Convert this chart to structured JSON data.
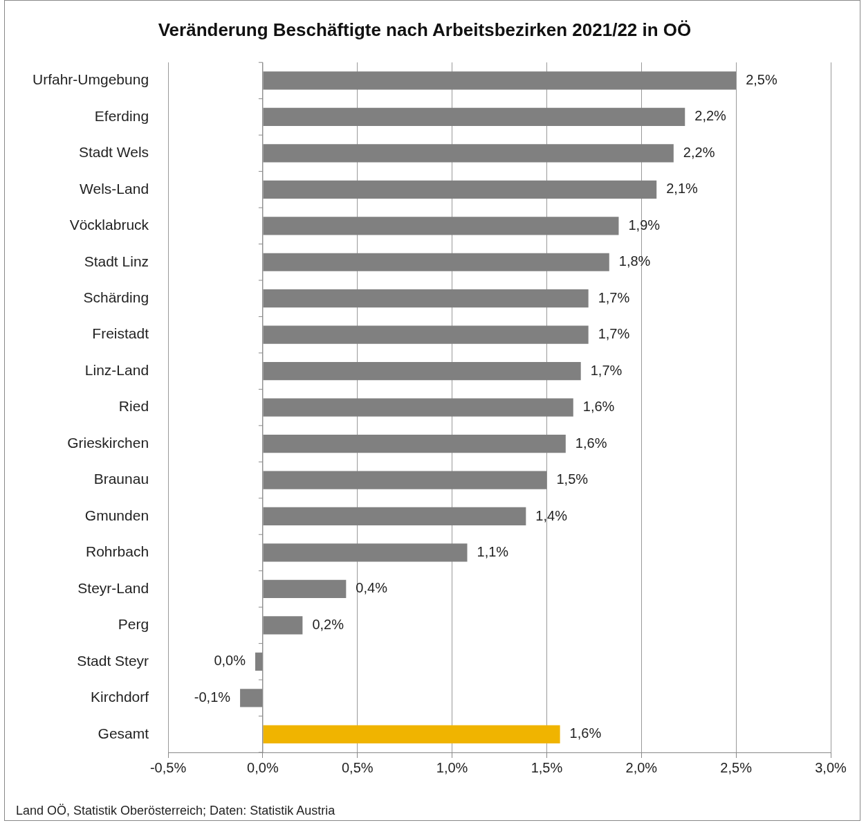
{
  "chart_data": {
    "type": "bar",
    "orientation": "horizontal",
    "title": "Veränderung Beschäftigte nach Arbeitsbezirken 2021/22 in OÖ",
    "categories": [
      "Urfahr-Umgebung",
      "Eferding",
      "Stadt Wels",
      "Wels-Land",
      "Vöcklabruck",
      "Stadt Linz",
      "Schärding",
      "Freistadt",
      "Linz-Land",
      "Ried",
      "Grieskirchen",
      "Braunau",
      "Gmunden",
      "Rohrbach",
      "Steyr-Land",
      "Perg",
      "Stadt Steyr",
      "Kirchdorf",
      "Gesamt"
    ],
    "values": [
      2.5,
      2.23,
      2.17,
      2.08,
      1.88,
      1.83,
      1.72,
      1.72,
      1.68,
      1.64,
      1.6,
      1.5,
      1.39,
      1.08,
      0.44,
      0.21,
      -0.04,
      -0.12,
      1.57
    ],
    "value_labels": [
      "2,5%",
      "2,2%",
      "2,2%",
      "2,1%",
      "1,9%",
      "1,8%",
      "1,7%",
      "1,7%",
      "1,7%",
      "1,6%",
      "1,6%",
      "1,5%",
      "1,4%",
      "1,1%",
      "0,4%",
      "0,2%",
      "0,0%",
      "-0,1%",
      "1,6%"
    ],
    "colors": [
      "#808080",
      "#808080",
      "#808080",
      "#808080",
      "#808080",
      "#808080",
      "#808080",
      "#808080",
      "#808080",
      "#808080",
      "#808080",
      "#808080",
      "#808080",
      "#808080",
      "#808080",
      "#808080",
      "#808080",
      "#808080",
      "#f0b400"
    ],
    "xlim": [
      -0.5,
      3.0
    ],
    "xticks": [
      {
        "value": -0.5,
        "label": "-0,5%"
      },
      {
        "value": 0,
        "label": "0,0%"
      },
      {
        "value": 0.5,
        "label": "0,5%"
      },
      {
        "value": 1,
        "label": "1,0%"
      },
      {
        "value": 1.5,
        "label": "1,5%"
      },
      {
        "value": 2,
        "label": "2,0%"
      },
      {
        "value": 2.5,
        "label": "2,5%"
      },
      {
        "value": 3,
        "label": "3,0%"
      }
    ],
    "grid": "x",
    "annotations": [
      "Land OÖ, Statistik Oberösterreich; Daten: Statistik Austria"
    ]
  }
}
